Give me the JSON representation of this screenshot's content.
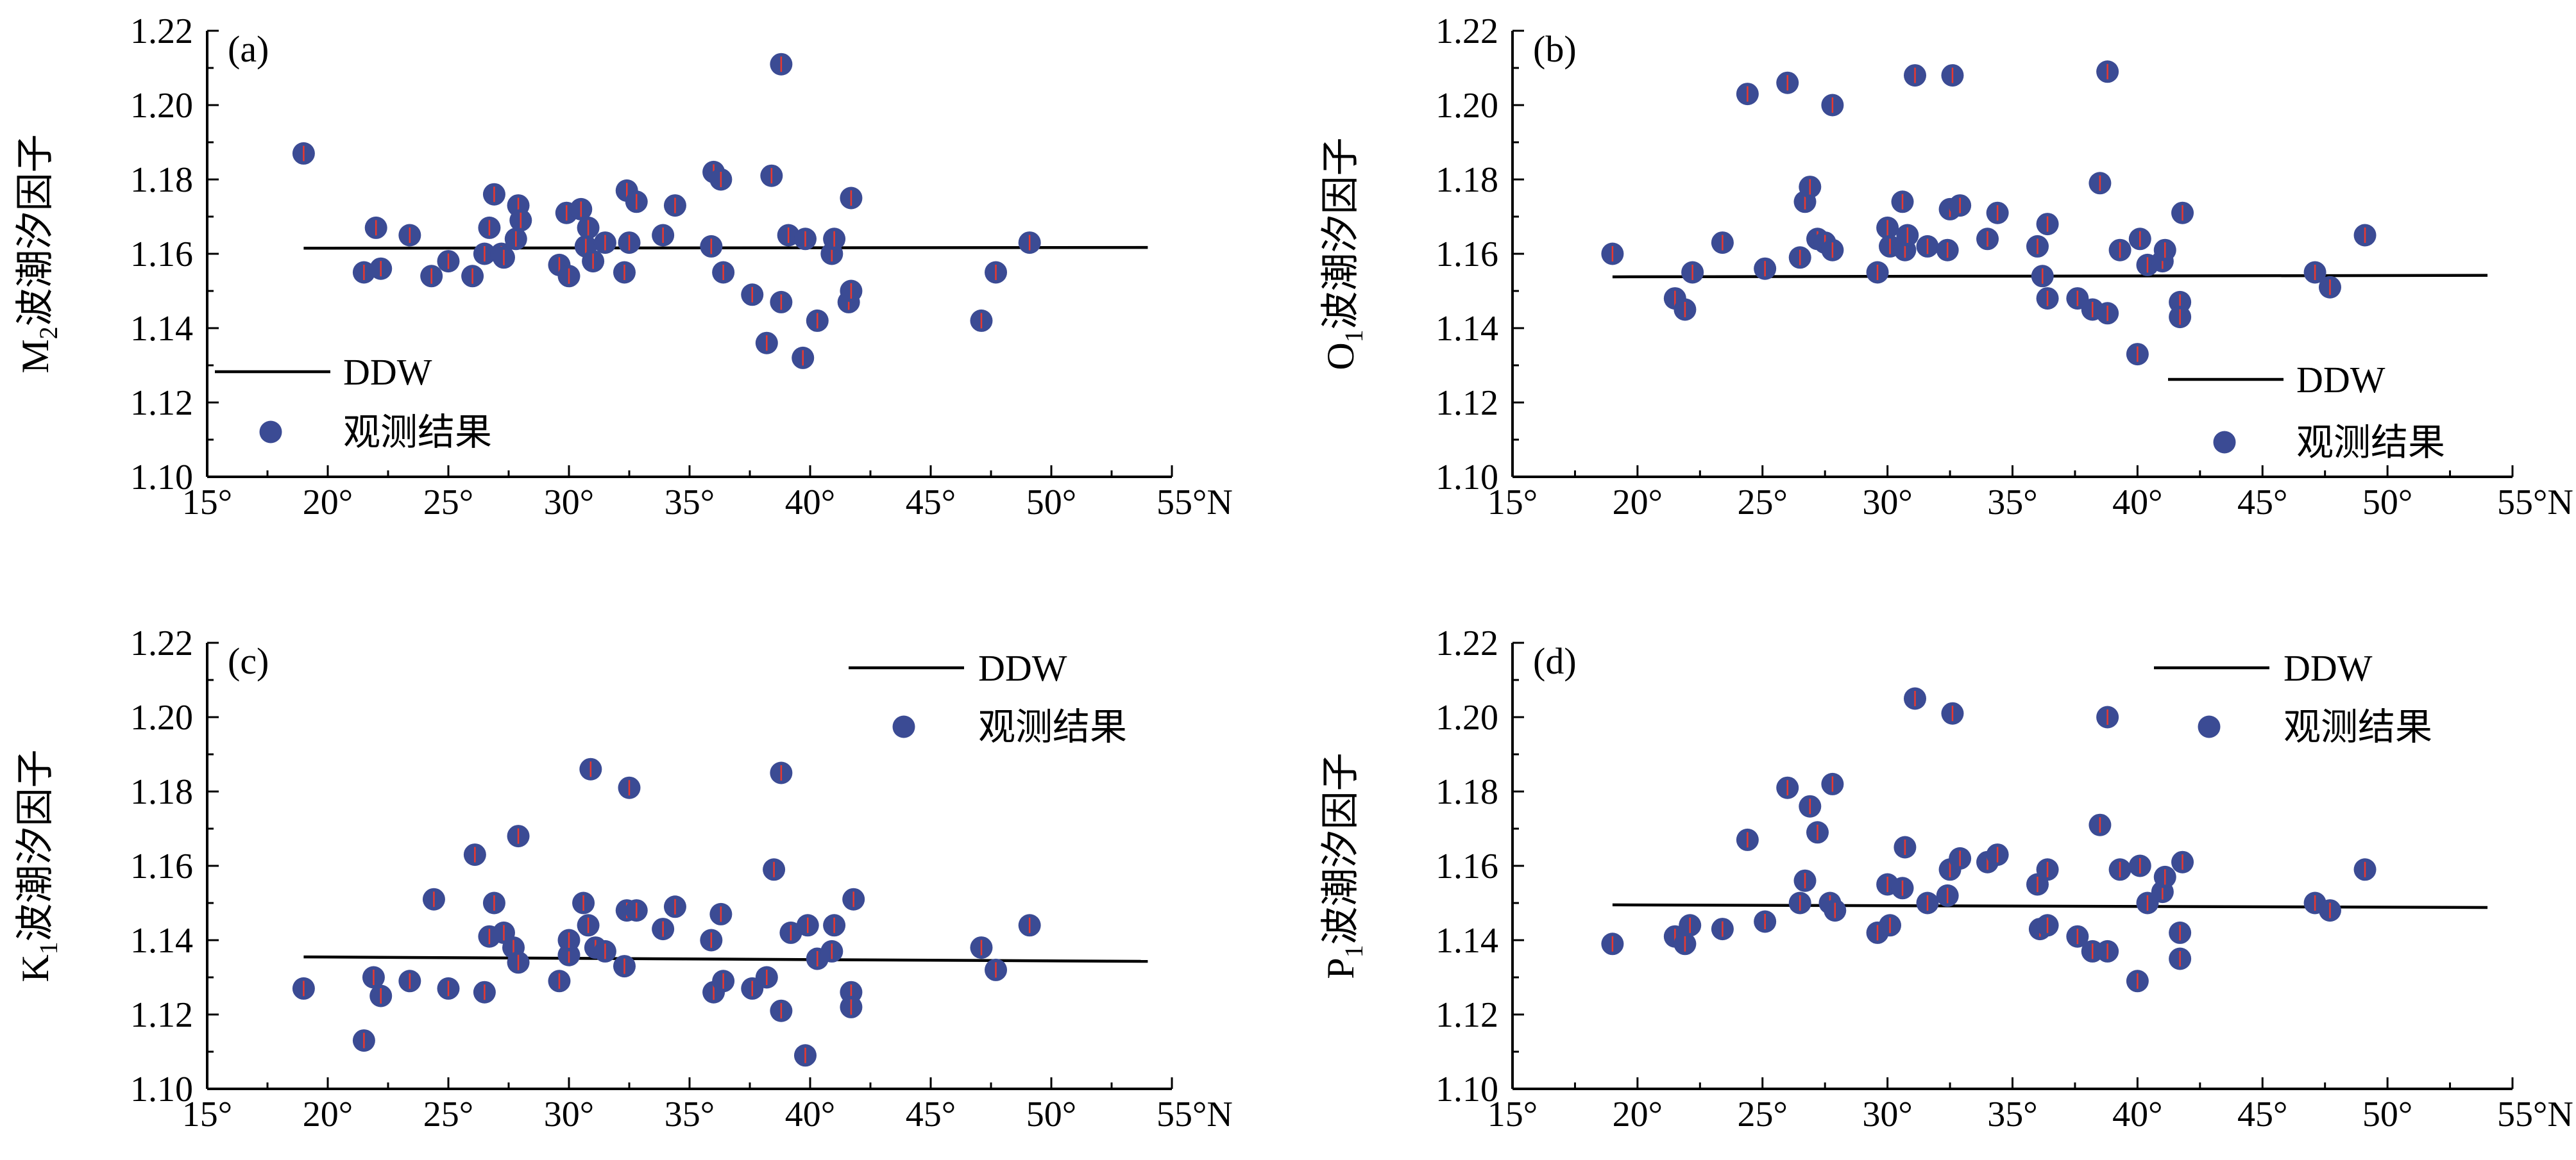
{
  "chart_data": [
    {
      "type": "scatter",
      "panel_label": "(a)",
      "ylabel_main": "M",
      "ylabel_sub": "2",
      "ylabel_rest": "波潮汐因子",
      "ylim": [
        1.1,
        1.22
      ],
      "xlim": [
        15,
        55
      ],
      "x_ticks": [
        15,
        20,
        25,
        30,
        35,
        40,
        45,
        50,
        55
      ],
      "x_tick_labels": [
        "15°",
        "20°",
        "25°",
        "30°",
        "35°",
        "40°",
        "45°",
        "50°",
        "55°N"
      ],
      "y_ticks": [
        1.1,
        1.12,
        1.14,
        1.16,
        1.18,
        1.2,
        1.22
      ],
      "y_tick_labels": [
        "1.10",
        "1.12",
        "1.14",
        "1.16",
        "1.18",
        "1.20",
        "1.22"
      ],
      "legend_position": "bottom-left",
      "series": [
        {
          "name": "DDW",
          "kind": "line",
          "x": [
            19,
            54
          ],
          "y": [
            1.1615,
            1.1617
          ]
        },
        {
          "name": "观测结果",
          "kind": "scatter",
          "points": [
            [
              19.0,
              1.187
            ],
            [
              21.5,
              1.155
            ],
            [
              22.0,
              1.167
            ],
            [
              22.2,
              1.156
            ],
            [
              23.4,
              1.165
            ],
            [
              24.3,
              1.154
            ],
            [
              25.0,
              1.158
            ],
            [
              26.0,
              1.154
            ],
            [
              26.5,
              1.16
            ],
            [
              26.7,
              1.167
            ],
            [
              26.9,
              1.176
            ],
            [
              27.2,
              1.16
            ],
            [
              27.3,
              1.159
            ],
            [
              27.8,
              1.164
            ],
            [
              27.9,
              1.173
            ],
            [
              28.0,
              1.169
            ],
            [
              29.6,
              1.157
            ],
            [
              29.9,
              1.171
            ],
            [
              30.0,
              1.154
            ],
            [
              30.5,
              1.172
            ],
            [
              30.7,
              1.162
            ],
            [
              30.8,
              1.167
            ],
            [
              31.0,
              1.158
            ],
            [
              31.5,
              1.163
            ],
            [
              32.3,
              1.155
            ],
            [
              32.4,
              1.177
            ],
            [
              32.5,
              1.163
            ],
            [
              32.8,
              1.174
            ],
            [
              33.9,
              1.165
            ],
            [
              34.4,
              1.173
            ],
            [
              35.9,
              1.162
            ],
            [
              36.0,
              1.182
            ],
            [
              36.3,
              1.18
            ],
            [
              36.4,
              1.155
            ],
            [
              37.6,
              1.149
            ],
            [
              38.2,
              1.136
            ],
            [
              38.4,
              1.181
            ],
            [
              38.8,
              1.147
            ],
            [
              38.8,
              1.211
            ],
            [
              39.1,
              1.165
            ],
            [
              39.7,
              1.132
            ],
            [
              39.8,
              1.164
            ],
            [
              40.3,
              1.142
            ],
            [
              40.9,
              1.16
            ],
            [
              41.0,
              1.164
            ],
            [
              41.6,
              1.147
            ],
            [
              41.7,
              1.15
            ],
            [
              41.7,
              1.175
            ],
            [
              47.1,
              1.142
            ],
            [
              47.7,
              1.155
            ],
            [
              49.1,
              1.163
            ]
          ]
        }
      ]
    },
    {
      "type": "scatter",
      "panel_label": "(b)",
      "ylabel_main": "O",
      "ylabel_sub": "1",
      "ylabel_rest": "波潮汐因子",
      "ylim": [
        1.1,
        1.22
      ],
      "xlim": [
        15,
        55
      ],
      "x_ticks": [
        15,
        20,
        25,
        30,
        35,
        40,
        45,
        50,
        55
      ],
      "x_tick_labels": [
        "15°",
        "20°",
        "25°",
        "30°",
        "35°",
        "40°",
        "45°",
        "50°",
        "55°N"
      ],
      "y_ticks": [
        1.1,
        1.12,
        1.14,
        1.16,
        1.18,
        1.2,
        1.22
      ],
      "y_tick_labels": [
        "1.10",
        "1.12",
        "1.14",
        "1.16",
        "1.18",
        "1.20",
        "1.22"
      ],
      "legend_position": "bottom-right",
      "series": [
        {
          "name": "DDW",
          "kind": "line",
          "x": [
            19,
            54
          ],
          "y": [
            1.1538,
            1.1542
          ]
        },
        {
          "name": "观测结果",
          "kind": "scatter",
          "points": [
            [
              19.0,
              1.16
            ],
            [
              21.5,
              1.148
            ],
            [
              21.9,
              1.145
            ],
            [
              22.2,
              1.155
            ],
            [
              23.4,
              1.163
            ],
            [
              24.4,
              1.203
            ],
            [
              25.1,
              1.156
            ],
            [
              26.0,
              1.206
            ],
            [
              26.5,
              1.159
            ],
            [
              26.7,
              1.174
            ],
            [
              26.9,
              1.178
            ],
            [
              27.2,
              1.164
            ],
            [
              27.5,
              1.163
            ],
            [
              27.8,
              1.161
            ],
            [
              27.8,
              1.2
            ],
            [
              29.6,
              1.155
            ],
            [
              30.0,
              1.167
            ],
            [
              30.1,
              1.162
            ],
            [
              30.6,
              1.174
            ],
            [
              30.7,
              1.161
            ],
            [
              30.8,
              1.165
            ],
            [
              31.1,
              1.208
            ],
            [
              31.6,
              1.162
            ],
            [
              32.4,
              1.161
            ],
            [
              32.5,
              1.172
            ],
            [
              32.6,
              1.208
            ],
            [
              32.9,
              1.173
            ],
            [
              34.0,
              1.164
            ],
            [
              34.4,
              1.171
            ],
            [
              36.0,
              1.162
            ],
            [
              36.2,
              1.154
            ],
            [
              36.4,
              1.148
            ],
            [
              36.4,
              1.168
            ],
            [
              37.6,
              1.148
            ],
            [
              38.2,
              1.145
            ],
            [
              38.5,
              1.179
            ],
            [
              38.8,
              1.144
            ],
            [
              38.8,
              1.209
            ],
            [
              39.3,
              1.161
            ],
            [
              40.0,
              1.133
            ],
            [
              40.1,
              1.164
            ],
            [
              40.4,
              1.157
            ],
            [
              41.0,
              1.158
            ],
            [
              41.1,
              1.161
            ],
            [
              41.7,
              1.147
            ],
            [
              41.7,
              1.143
            ],
            [
              41.8,
              1.171
            ],
            [
              47.1,
              1.155
            ],
            [
              47.7,
              1.151
            ],
            [
              49.1,
              1.165
            ]
          ]
        }
      ]
    },
    {
      "type": "scatter",
      "panel_label": "(c)",
      "ylabel_main": "K",
      "ylabel_sub": "1",
      "ylabel_rest": "波潮汐因子",
      "ylim": [
        1.1,
        1.22
      ],
      "xlim": [
        15,
        55
      ],
      "x_ticks": [
        15,
        20,
        25,
        30,
        35,
        40,
        45,
        50,
        55
      ],
      "x_tick_labels": [
        "15°",
        "20°",
        "25°",
        "30°",
        "35°",
        "40°",
        "45°",
        "50°",
        "55°N"
      ],
      "y_ticks": [
        1.1,
        1.12,
        1.14,
        1.16,
        1.18,
        1.2,
        1.22
      ],
      "y_tick_labels": [
        "1.10",
        "1.12",
        "1.14",
        "1.16",
        "1.18",
        "1.20",
        "1.22"
      ],
      "legend_position": "top-right",
      "series": [
        {
          "name": "DDW",
          "kind": "line",
          "x": [
            19,
            54
          ],
          "y": [
            1.1355,
            1.1343
          ]
        },
        {
          "name": "观测结果",
          "kind": "scatter",
          "points": [
            [
              19.0,
              1.127
            ],
            [
              21.5,
              1.113
            ],
            [
              21.9,
              1.13
            ],
            [
              22.2,
              1.125
            ],
            [
              23.4,
              1.129
            ],
            [
              24.4,
              1.151
            ],
            [
              25.0,
              1.127
            ],
            [
              26.1,
              1.163
            ],
            [
              26.5,
              1.126
            ],
            [
              26.7,
              1.141
            ],
            [
              26.9,
              1.15
            ],
            [
              27.3,
              1.142
            ],
            [
              27.7,
              1.138
            ],
            [
              27.9,
              1.134
            ],
            [
              27.9,
              1.168
            ],
            [
              29.6,
              1.129
            ],
            [
              30.0,
              1.136
            ],
            [
              30.0,
              1.14
            ],
            [
              30.6,
              1.15
            ],
            [
              30.8,
              1.144
            ],
            [
              30.9,
              1.186
            ],
            [
              31.1,
              1.138
            ],
            [
              31.5,
              1.137
            ],
            [
              32.3,
              1.133
            ],
            [
              32.4,
              1.148
            ],
            [
              32.5,
              1.181
            ],
            [
              32.8,
              1.148
            ],
            [
              33.9,
              1.143
            ],
            [
              34.4,
              1.149
            ],
            [
              35.9,
              1.14
            ],
            [
              36.0,
              1.126
            ],
            [
              36.3,
              1.147
            ],
            [
              36.4,
              1.129
            ],
            [
              37.6,
              1.127
            ],
            [
              38.2,
              1.13
            ],
            [
              38.5,
              1.159
            ],
            [
              38.8,
              1.121
            ],
            [
              38.8,
              1.185
            ],
            [
              39.2,
              1.142
            ],
            [
              39.8,
              1.109
            ],
            [
              39.9,
              1.144
            ],
            [
              40.3,
              1.135
            ],
            [
              40.9,
              1.137
            ],
            [
              41.0,
              1.144
            ],
            [
              41.7,
              1.126
            ],
            [
              41.7,
              1.122
            ],
            [
              41.8,
              1.151
            ],
            [
              47.1,
              1.138
            ],
            [
              47.7,
              1.132
            ],
            [
              49.1,
              1.144
            ]
          ]
        }
      ]
    },
    {
      "type": "scatter",
      "panel_label": "(d)",
      "ylabel_main": "P",
      "ylabel_sub": "1",
      "ylabel_rest": "波潮汐因子",
      "ylim": [
        1.1,
        1.22
      ],
      "xlim": [
        15,
        55
      ],
      "x_ticks": [
        15,
        20,
        25,
        30,
        35,
        40,
        45,
        50,
        55
      ],
      "x_tick_labels": [
        "15°",
        "20°",
        "25°",
        "30°",
        "35°",
        "40°",
        "45°",
        "50°",
        "55°N"
      ],
      "y_ticks": [
        1.1,
        1.12,
        1.14,
        1.16,
        1.18,
        1.2,
        1.22
      ],
      "y_tick_labels": [
        "1.10",
        "1.12",
        "1.14",
        "1.16",
        "1.18",
        "1.20",
        "1.22"
      ],
      "legend_position": "top-right",
      "series": [
        {
          "name": "DDW",
          "kind": "line",
          "x": [
            19,
            54
          ],
          "y": [
            1.1495,
            1.1488
          ]
        },
        {
          "name": "观测结果",
          "kind": "scatter",
          "points": [
            [
              19.0,
              1.139
            ],
            [
              21.5,
              1.141
            ],
            [
              21.9,
              1.139
            ],
            [
              22.1,
              1.144
            ],
            [
              23.4,
              1.143
            ],
            [
              24.4,
              1.167
            ],
            [
              25.1,
              1.145
            ],
            [
              26.0,
              1.181
            ],
            [
              26.5,
              1.15
            ],
            [
              26.7,
              1.156
            ],
            [
              26.9,
              1.176
            ],
            [
              27.2,
              1.169
            ],
            [
              27.7,
              1.15
            ],
            [
              27.8,
              1.182
            ],
            [
              27.9,
              1.148
            ],
            [
              29.6,
              1.142
            ],
            [
              30.0,
              1.155
            ],
            [
              30.1,
              1.144
            ],
            [
              30.6,
              1.154
            ],
            [
              30.7,
              1.165
            ],
            [
              31.1,
              1.205
            ],
            [
              31.6,
              1.15
            ],
            [
              32.4,
              1.152
            ],
            [
              32.5,
              1.159
            ],
            [
              32.6,
              1.201
            ],
            [
              32.9,
              1.162
            ],
            [
              34.0,
              1.161
            ],
            [
              34.4,
              1.163
            ],
            [
              36.0,
              1.155
            ],
            [
              36.1,
              1.143
            ],
            [
              36.4,
              1.144
            ],
            [
              36.4,
              1.159
            ],
            [
              37.6,
              1.141
            ],
            [
              38.2,
              1.137
            ],
            [
              38.5,
              1.171
            ],
            [
              38.8,
              1.137
            ],
            [
              38.8,
              1.2
            ],
            [
              39.3,
              1.159
            ],
            [
              40.0,
              1.129
            ],
            [
              40.1,
              1.16
            ],
            [
              40.4,
              1.15
            ],
            [
              41.0,
              1.153
            ],
            [
              41.1,
              1.157
            ],
            [
              41.7,
              1.142
            ],
            [
              41.7,
              1.135
            ],
            [
              41.8,
              1.161
            ],
            [
              47.1,
              1.15
            ],
            [
              47.7,
              1.148
            ],
            [
              49.1,
              1.159
            ]
          ]
        }
      ]
    }
  ],
  "colors": {
    "marker_fill": "#3b4b94",
    "error_bar": "#e8392f",
    "line": "#000000",
    "axis": "#000000"
  }
}
